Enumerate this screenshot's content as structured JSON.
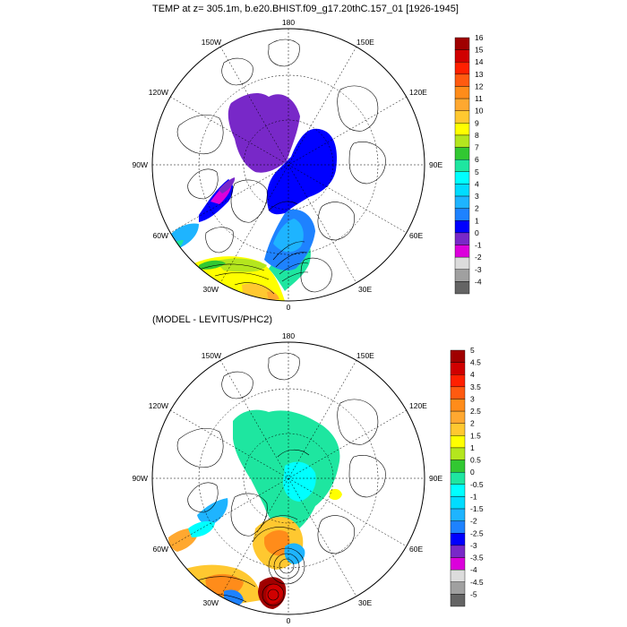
{
  "titles": {
    "top": "TEMP at z= 305.1m, b.e20.BHIST.f09_g17.20thC.157_01 [1926-1945]",
    "bottom": "(MODEL - LEVITUS/PHC2)"
  },
  "longitude_labels": {
    "lon_180": "180",
    "lon_150W": "150W",
    "lon_120W": "120W",
    "lon_90W": "90W",
    "lon_60W": "60W",
    "lon_30W": "30W",
    "lon_0": "0",
    "lon_30E": "30E",
    "lon_60E": "60E",
    "lon_90E": "90E",
    "lon_120E": "120E",
    "lon_150E": "150E"
  },
  "colorbar_top": {
    "labels": [
      "16",
      "15",
      "14",
      "13",
      "12",
      "11",
      "10",
      "9",
      "8",
      "7",
      "6",
      "5",
      "4",
      "3",
      "2",
      "1",
      "0",
      "-1",
      "-2",
      "-3",
      "-4"
    ],
    "colors": [
      "#a00000",
      "#d00000",
      "#ff2000",
      "#ff5a10",
      "#ff8c1a",
      "#ffa830",
      "#ffc830",
      "#ffff00",
      "#b4e61e",
      "#32c832",
      "#1ee6a0",
      "#00ffff",
      "#00dcff",
      "#1eb4ff",
      "#1e82ff",
      "#0000ff",
      "#7828c8",
      "#dc00dc",
      "#dcdcdc",
      "#a0a0a0",
      "#646464"
    ]
  },
  "colorbar_bottom": {
    "labels": [
      "5",
      "4.5",
      "4",
      "3.5",
      "3",
      "2.5",
      "2",
      "1.5",
      "1",
      "0.5",
      "0",
      "-0.5",
      "-1",
      "-1.5",
      "-2",
      "-2.5",
      "-3",
      "-3.5",
      "-4",
      "-4.5",
      "-5"
    ],
    "colors": [
      "#a00000",
      "#d00000",
      "#ff2000",
      "#ff5a10",
      "#ff8c1a",
      "#ffa830",
      "#ffc830",
      "#ffff00",
      "#b4e61e",
      "#32c832",
      "#1ee6a0",
      "#00ffff",
      "#00dcff",
      "#1eb4ff",
      "#1e82ff",
      "#0000ff",
      "#7828c8",
      "#dc00dc",
      "#dcdcdc",
      "#a0a0a0",
      "#646464"
    ]
  }
}
